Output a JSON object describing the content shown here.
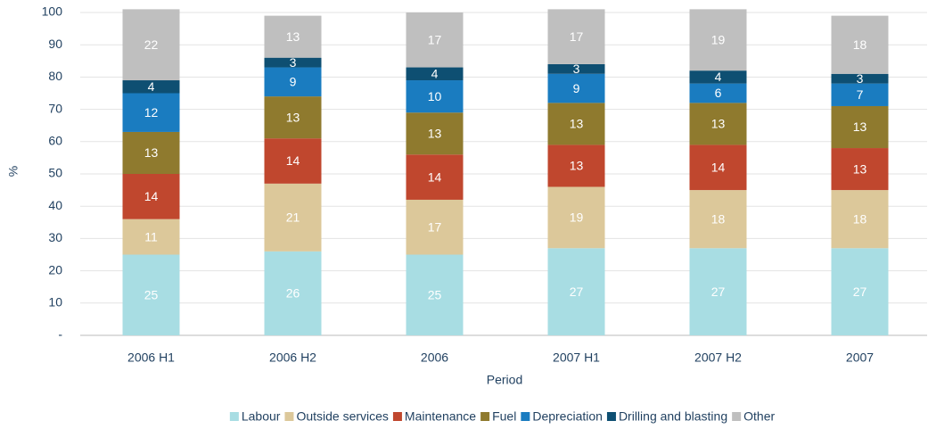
{
  "chart_data": {
    "type": "stacked_bar",
    "x_label": "Period",
    "y_label": "%",
    "categories": [
      "2006 H1",
      "2006 H2",
      "2006",
      "2007 H1",
      "2007 H2",
      "2007"
    ],
    "series": [
      {
        "name": "Labour",
        "color": "#a8dde3",
        "values": [
          25,
          26,
          25,
          27,
          27,
          27
        ]
      },
      {
        "name": "Outside services",
        "color": "#dcc89a",
        "values": [
          11,
          21,
          17,
          19,
          18,
          18
        ]
      },
      {
        "name": "Maintenance",
        "color": "#c0472e",
        "values": [
          14,
          14,
          14,
          13,
          14,
          13
        ]
      },
      {
        "name": "Fuel",
        "color": "#8f7a2e",
        "values": [
          13,
          13,
          13,
          13,
          13,
          13
        ]
      },
      {
        "name": "Depreciation",
        "color": "#1a7cc0",
        "values": [
          12,
          9,
          10,
          9,
          6,
          7
        ]
      },
      {
        "name": "Drilling and blasting",
        "color": "#0e4f72",
        "values": [
          4,
          3,
          4,
          3,
          4,
          3
        ]
      },
      {
        "name": "Other",
        "color": "#bfbfbf",
        "values": [
          22,
          13,
          17,
          17,
          19,
          18
        ]
      }
    ],
    "ylim": [
      0,
      100
    ],
    "yticks": [
      {
        "value": 0,
        "label": "-"
      },
      10,
      20,
      30,
      40,
      50,
      60,
      70,
      80,
      90,
      100
    ],
    "grid": true,
    "legend": "bottom"
  }
}
